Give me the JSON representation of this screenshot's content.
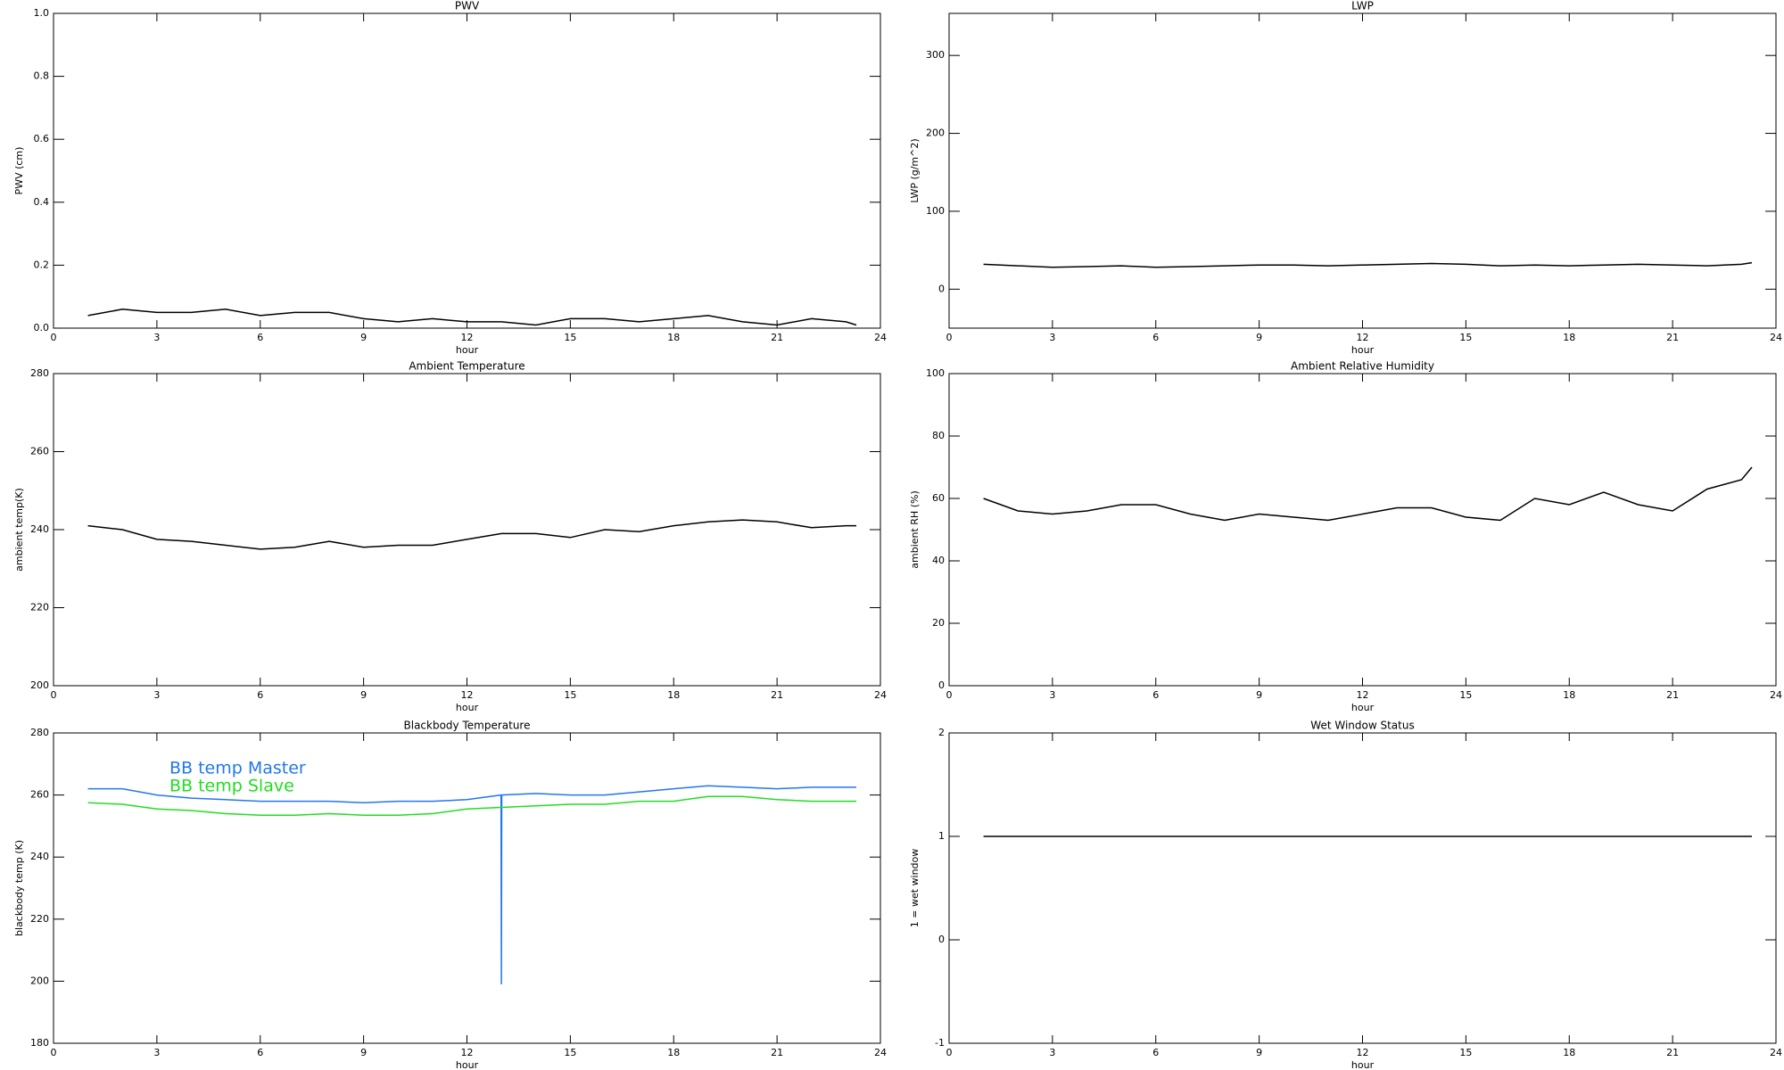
{
  "chart_data": [
    {
      "type": "line",
      "title": "PWV",
      "x_label": "hour",
      "y_label": "PWV (cm)",
      "color": "#000000",
      "x": [
        1,
        2,
        3,
        4,
        5,
        6,
        7,
        8,
        9,
        10,
        11,
        12,
        13,
        14,
        15,
        16,
        17,
        18,
        19,
        20,
        21,
        22,
        23,
        23.3
      ],
      "values": [
        0.04,
        0.06,
        0.05,
        0.05,
        0.06,
        0.04,
        0.05,
        0.05,
        0.03,
        0.02,
        0.03,
        0.02,
        0.02,
        0.01,
        0.03,
        0.03,
        0.02,
        0.03,
        0.04,
        0.02,
        0.01,
        0.03,
        0.02,
        0.01
      ],
      "xlim": [
        0,
        24
      ],
      "xticks": [
        0,
        3,
        6,
        9,
        12,
        15,
        18,
        21,
        24
      ],
      "ylim": [
        0,
        1
      ],
      "yticks": [
        {
          "value": 0,
          "label": "0.0"
        },
        0.2,
        0.4,
        0.6,
        0.8,
        {
          "value": 1,
          "label": "1.0"
        }
      ]
    },
    {
      "type": "line",
      "title": "LWP",
      "x_label": "hour",
      "y_label": "LWP (g/m^2)",
      "color": "#000000",
      "x": [
        1,
        2,
        3,
        4,
        5,
        6,
        7,
        8,
        9,
        10,
        11,
        12,
        13,
        14,
        15,
        16,
        17,
        18,
        19,
        20,
        21,
        22,
        23,
        23.3
      ],
      "values": [
        32,
        30,
        28,
        29,
        30,
        28,
        29,
        30,
        31,
        31,
        30,
        31,
        32,
        33,
        32,
        30,
        31,
        30,
        31,
        32,
        31,
        30,
        32,
        34
      ],
      "xlim": [
        0,
        24
      ],
      "xticks": [
        0,
        3,
        6,
        9,
        12,
        15,
        18,
        21,
        24
      ],
      "ylim": [
        -50,
        354
      ],
      "yticks": [
        0,
        100,
        200,
        300
      ]
    },
    {
      "type": "line",
      "title": "Ambient Temperature",
      "x_label": "hour",
      "y_label": "ambient temp(K)",
      "color": "#000000",
      "x": [
        1,
        2,
        3,
        4,
        5,
        6,
        7,
        8,
        9,
        10,
        11,
        12,
        13,
        14,
        15,
        16,
        17,
        18,
        19,
        20,
        21,
        22,
        23,
        23.3
      ],
      "values": [
        241,
        240,
        237.5,
        237,
        236,
        235,
        235.5,
        237,
        235.5,
        236,
        236,
        237.5,
        239,
        239,
        238,
        240,
        239.5,
        241,
        242,
        242.5,
        242,
        240.5,
        241,
        241
      ],
      "xlim": [
        0,
        24
      ],
      "xticks": [
        0,
        3,
        6,
        9,
        12,
        15,
        18,
        21,
        24
      ],
      "ylim": [
        200,
        280
      ],
      "yticks": [
        200,
        220,
        240,
        260,
        280
      ]
    },
    {
      "type": "line",
      "title": "Ambient Relative Humidity",
      "x_label": "hour",
      "y_label": "ambient RH (%)",
      "color": "#000000",
      "x": [
        1,
        2,
        3,
        4,
        5,
        6,
        7,
        8,
        9,
        10,
        11,
        12,
        13,
        14,
        15,
        16,
        17,
        18,
        19,
        20,
        21,
        22,
        23,
        23.3
      ],
      "values": [
        60,
        56,
        55,
        56,
        58,
        58,
        55,
        53,
        55,
        54,
        53,
        55,
        57,
        57,
        54,
        53,
        60,
        58,
        62,
        58,
        56,
        63,
        66,
        70
      ],
      "xlim": [
        0,
        24
      ],
      "xticks": [
        0,
        3,
        6,
        9,
        12,
        15,
        18,
        21,
        24
      ],
      "ylim": [
        0,
        100
      ],
      "yticks": [
        0,
        20,
        40,
        60,
        80,
        100
      ]
    },
    {
      "type": "line",
      "title": "Blackbody Temperature",
      "x_label": "hour",
      "y_label": "blackbody temp (K)",
      "x": [
        1,
        2,
        3,
        4,
        5,
        6,
        7,
        8,
        9,
        10,
        11,
        12,
        12.99,
        13,
        13.01,
        14,
        15,
        16,
        17,
        18,
        19,
        20,
        21,
        22,
        23,
        23.3
      ],
      "series": [
        {
          "name": "BB temp Master",
          "color": "#2277ee",
          "values": [
            262,
            262,
            260,
            259,
            258.5,
            258,
            258,
            258,
            257.5,
            258,
            258,
            258.5,
            260,
            199,
            260,
            260.5,
            260,
            260,
            261,
            262,
            263,
            262.5,
            262,
            262.5,
            262.5,
            262.5
          ]
        },
        {
          "name": "BB temp Slave",
          "color": "#22dd22",
          "values": [
            257.5,
            257,
            255.5,
            255,
            254,
            253.5,
            253.5,
            254,
            253.5,
            253.5,
            254,
            255.5,
            256,
            256,
            256,
            256.5,
            257,
            257,
            258,
            258,
            259.5,
            259.5,
            258.5,
            258,
            258,
            258
          ]
        }
      ],
      "xlim": [
        0,
        24
      ],
      "xticks": [
        0,
        3,
        6,
        9,
        12,
        15,
        18,
        21,
        24
      ],
      "ylim": [
        180,
        280
      ],
      "yticks": [
        180,
        200,
        220,
        240,
        260,
        280
      ]
    },
    {
      "type": "line",
      "title": "Wet Window Status",
      "x_label": "hour",
      "y_label": "1 = wet window",
      "color": "#000000",
      "x": [
        1,
        23.3
      ],
      "values": [
        1,
        1
      ],
      "xlim": [
        0,
        24
      ],
      "xticks": [
        0,
        3,
        6,
        9,
        12,
        15,
        18,
        21,
        24
      ],
      "ylim": [
        -1,
        2
      ],
      "yticks": [
        -1,
        0,
        1,
        2
      ]
    }
  ]
}
